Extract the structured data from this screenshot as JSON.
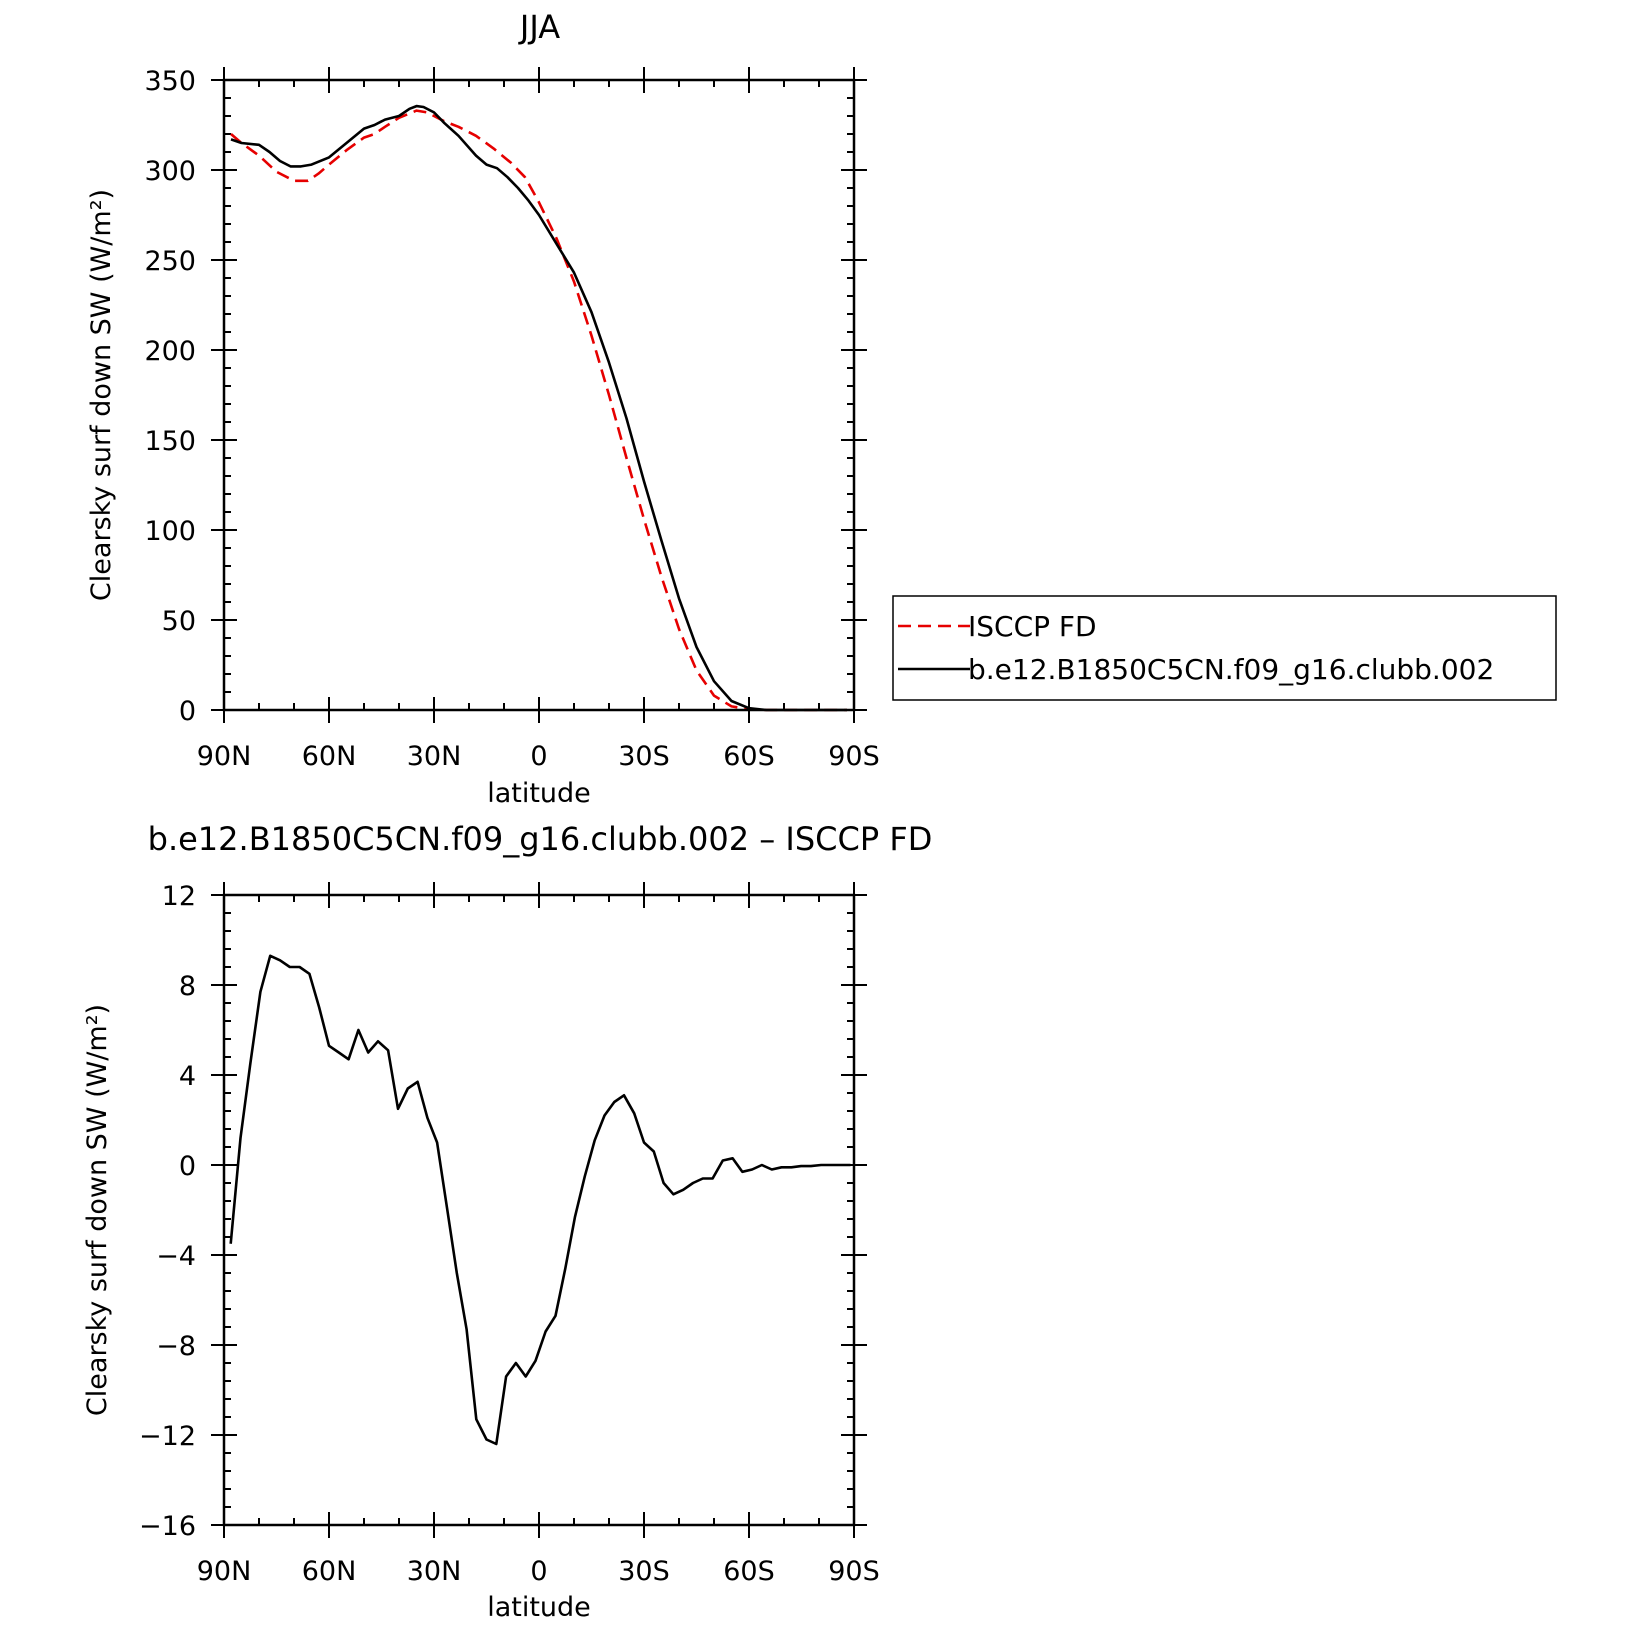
{
  "colors": {
    "model": "#000000",
    "obs": "#e60000"
  },
  "chart_data": [
    {
      "type": "line",
      "title": "JJA",
      "xlabel": "latitude",
      "ylabel": "Clearsky surf down SW (W/m²)",
      "xlim": [
        -90,
        90
      ],
      "ylim": [
        0,
        350
      ],
      "x_direction": "north-to-south",
      "xticks": [
        -90,
        -60,
        -30,
        0,
        30,
        60,
        90
      ],
      "xtick_labels": [
        "90N",
        "60N",
        "30N",
        "0",
        "30S",
        "60S",
        "90S"
      ],
      "yticks": [
        0,
        50,
        100,
        150,
        200,
        250,
        300,
        350
      ],
      "ytick_labels": [
        "0",
        "50",
        "100",
        "150",
        "200",
        "250",
        "300",
        "350"
      ],
      "legend": {
        "placement": "right",
        "entries": [
          "ISCCP FD",
          "b.e12.B1850C5CN.f09_g16.clubb.002"
        ]
      },
      "series": [
        {
          "name": "ISCCP FD",
          "style": "dashed",
          "color": "#e60000",
          "x": [
            -88,
            -85,
            -80,
            -75,
            -70,
            -66,
            -63,
            -60,
            -55,
            -50,
            -47,
            -44,
            -40,
            -35,
            -32,
            -30,
            -27,
            -23,
            -18,
            -13,
            -8,
            -4,
            0,
            5,
            10,
            15,
            20,
            25,
            30,
            35,
            40,
            45,
            50,
            55,
            60,
            65,
            70,
            75,
            80,
            85,
            88
          ],
          "y": [
            320,
            315,
            308,
            299,
            294,
            294,
            298,
            303,
            311,
            318,
            320,
            324,
            329,
            333,
            332,
            330,
            327,
            324,
            319,
            312,
            304,
            296,
            282,
            262,
            238,
            208,
            175,
            140,
            106,
            74,
            45,
            22,
            8,
            2,
            0.5,
            0,
            0,
            0,
            0,
            0,
            0
          ]
        },
        {
          "name": "b.e12.B1850C5CN.f09_g16.clubb.002",
          "style": "solid",
          "color": "#000000",
          "x": [
            -88,
            -85,
            -80,
            -77,
            -74,
            -71,
            -68,
            -65,
            -60,
            -55,
            -50,
            -47,
            -44,
            -40,
            -37,
            -35,
            -33,
            -30,
            -27,
            -23,
            -18,
            -15,
            -12,
            -9,
            -6,
            -3,
            0,
            5,
            10,
            15,
            20,
            25,
            30,
            35,
            40,
            45,
            50,
            55,
            60,
            65,
            70,
            75,
            80,
            85,
            88
          ],
          "y": [
            317,
            315,
            314,
            310,
            305,
            302,
            302,
            303,
            307,
            315,
            323,
            325,
            328,
            330,
            334,
            335.5,
            335,
            332,
            326,
            319,
            308,
            303,
            301,
            296,
            290,
            283,
            275,
            259,
            243,
            221,
            193,
            162,
            127,
            94,
            62,
            35,
            16,
            5,
            1,
            0,
            0,
            0,
            0,
            0,
            0
          ]
        }
      ]
    },
    {
      "type": "line",
      "title": "b.e12.B1850C5CN.f09_g16.clubb.002 – ISCCP FD",
      "xlabel": "latitude",
      "ylabel": "Clearsky surf down SW (W/m²)",
      "xlim": [
        -90,
        90
      ],
      "ylim": [
        -16,
        12
      ],
      "x_direction": "north-to-south",
      "xticks": [
        -90,
        -60,
        -30,
        0,
        30,
        60,
        90
      ],
      "xtick_labels": [
        "90N",
        "60N",
        "30N",
        "0",
        "30S",
        "60S",
        "90S"
      ],
      "yticks": [
        -16,
        -12,
        -8,
        -4,
        0,
        4,
        8,
        12
      ],
      "ytick_labels": [
        "−16",
        "−12",
        "−8",
        "−4",
        "0",
        "4",
        "8",
        "12"
      ],
      "series": [
        {
          "style": "solid",
          "color": "#000000",
          "x": [
            -88.1,
            -85.3,
            -82.5,
            -79.6,
            -76.8,
            -74.0,
            -71.2,
            -68.4,
            -65.6,
            -62.8,
            -60.0,
            -57.2,
            -54.4,
            -51.6,
            -48.8,
            -46.0,
            -43.1,
            -40.3,
            -37.5,
            -34.7,
            -31.9,
            -29.1,
            -26.3,
            -23.5,
            -20.7,
            -17.9,
            -15.0,
            -12.2,
            -9.4,
            -6.6,
            -3.8,
            -1.0,
            1.9,
            4.7,
            7.5,
            10.3,
            13.1,
            15.9,
            18.7,
            21.5,
            24.3,
            27.2,
            30.0,
            32.8,
            35.6,
            38.4,
            41.2,
            44.0,
            46.8,
            49.6,
            52.5,
            55.3,
            58.1,
            60.9,
            63.7,
            66.5,
            69.3,
            72.1,
            74.9,
            77.7,
            80.6,
            83.4,
            86.2,
            89.0
          ],
          "y": [
            -3.5,
            1.2,
            4.5,
            7.7,
            9.3,
            9.1,
            8.8,
            8.8,
            8.5,
            7.0,
            5.3,
            5.0,
            4.7,
            6.0,
            5.0,
            5.5,
            5.1,
            2.5,
            3.4,
            3.7,
            2.1,
            1.0,
            -1.9,
            -4.8,
            -7.3,
            -11.3,
            -12.2,
            -12.4,
            -9.4,
            -8.8,
            -9.4,
            -8.7,
            -7.4,
            -6.7,
            -4.6,
            -2.3,
            -0.5,
            1.1,
            2.2,
            2.8,
            3.1,
            2.3,
            1.0,
            0.6,
            -0.8,
            -1.3,
            -1.1,
            -0.8,
            -0.6,
            -0.6,
            0.2,
            0.3,
            -0.3,
            -0.2,
            0.0,
            -0.2,
            -0.1,
            -0.1,
            -0.05,
            -0.05,
            0.0,
            0.0,
            0.0,
            0.0
          ]
        }
      ]
    }
  ]
}
